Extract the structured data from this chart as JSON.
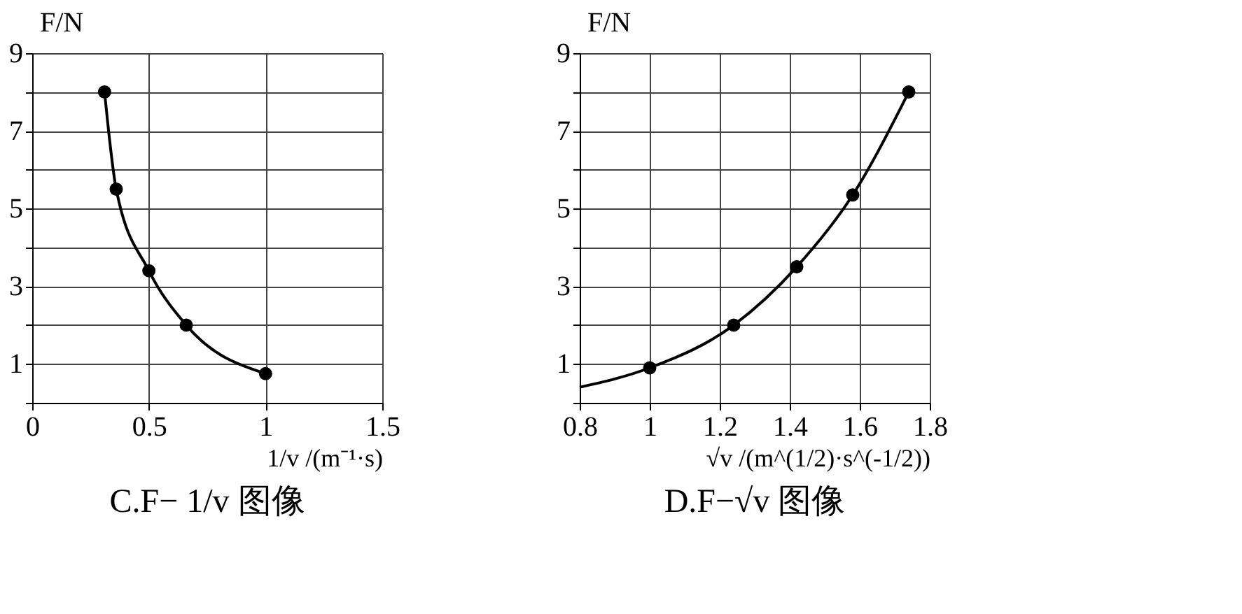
{
  "chart_data": [
    {
      "type": "scatter",
      "title": "C.F− 1/v 图像",
      "xlabel": "1/v /(m⁻¹·s)",
      "ylabel": "F/N",
      "xlim": [
        0,
        1.5
      ],
      "ylim": [
        0,
        9
      ],
      "xticks": [
        0,
        0.5,
        1,
        1.5
      ],
      "yticks": [
        {
          "value": 0,
          "label": null
        },
        1,
        {
          "value": 2,
          "label": null
        },
        3,
        {
          "value": 4,
          "label": null
        },
        5,
        {
          "value": 6,
          "label": null
        },
        7,
        {
          "value": 8,
          "label": null
        },
        9
      ],
      "grid": true,
      "series": [
        {
          "type": "line",
          "marker": "none",
          "color": "#000000",
          "x": [
            0.31,
            0.36,
            0.5,
            0.66,
            1.0
          ],
          "values": [
            8,
            5.5,
            3.4,
            2,
            0.75
          ]
        },
        {
          "type": "scatter",
          "marker": "circle",
          "color": "#000000",
          "x": [
            0.31,
            0.36,
            0.5,
            0.66,
            1.0
          ],
          "values": [
            8,
            5.5,
            3.4,
            2,
            0.75
          ]
        }
      ]
    },
    {
      "type": "scatter",
      "title": "D.F−√v 图像",
      "xlabel": "√v /(m^(1/2)·s^(-1/2))",
      "ylabel": "F/N",
      "xlim": [
        0.8,
        1.8
      ],
      "ylim": [
        0,
        9
      ],
      "xticks": [
        0.8,
        1,
        1.2,
        1.4,
        1.6,
        1.8
      ],
      "yticks": [
        {
          "value": 0,
          "label": null
        },
        1,
        {
          "value": 2,
          "label": null
        },
        3,
        {
          "value": 4,
          "label": null
        },
        5,
        {
          "value": 6,
          "label": null
        },
        7,
        {
          "value": 8,
          "label": null
        },
        9
      ],
      "grid": true,
      "series": [
        {
          "type": "line",
          "marker": "none",
          "color": "#000000",
          "x": [
            0.8,
            1.0,
            1.24,
            1.42,
            1.58,
            1.74
          ],
          "values": [
            0.4,
            0.9,
            2,
            3.5,
            5.35,
            8
          ]
        },
        {
          "type": "scatter",
          "marker": "circle",
          "color": "#000000",
          "x": [
            1.0,
            1.24,
            1.42,
            1.58,
            1.74
          ],
          "values": [
            0.9,
            2,
            3.5,
            5.35,
            8
          ]
        }
      ]
    }
  ]
}
